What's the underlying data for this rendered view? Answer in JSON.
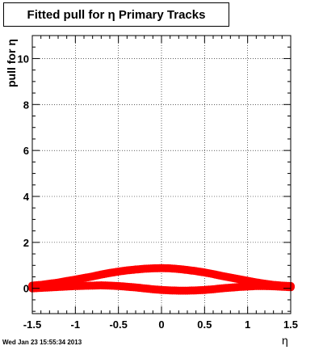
{
  "timestamp": "Wed Jan 23 15:55:34 2013",
  "chart_data": {
    "type": "scatter",
    "title": "Fitted pull for  η  Primary Tracks",
    "xlabel": "η",
    "ylabel": "pull for η",
    "xlim": [
      -1.5,
      1.5
    ],
    "ylim": [
      -1.1,
      11.0
    ],
    "xticks": [
      -1.5,
      -1,
      -0.5,
      0,
      0.5,
      1,
      1.5
    ],
    "xtick_labels": [
      "-1.5",
      "-1",
      "-0.5",
      "0",
      "0.5",
      "1",
      "1.5"
    ],
    "yticks": [
      0,
      2,
      4,
      6,
      8,
      10
    ],
    "ytick_labels": [
      "0",
      "2",
      "4",
      "6",
      "8",
      "10"
    ],
    "grid": true,
    "marker_color": "#ff0000",
    "series": [
      {
        "x": [
          -1.5,
          -1.4,
          -1.3,
          -1.2,
          -1.1,
          -1.0,
          -0.9,
          -0.8,
          -0.7,
          -0.6,
          -0.5,
          -0.4,
          -0.3,
          -0.2,
          -0.1,
          0.0,
          0.1,
          0.2,
          0.3,
          0.4,
          0.5,
          0.6,
          0.7,
          0.8,
          0.9,
          1.0,
          1.1,
          1.2,
          1.3,
          1.4,
          1.5
        ],
        "y": [
          0.12,
          0.15,
          0.2,
          0.25,
          0.32,
          0.38,
          0.45,
          0.52,
          0.6,
          0.67,
          0.73,
          0.78,
          0.82,
          0.85,
          0.87,
          0.88,
          0.87,
          0.84,
          0.8,
          0.75,
          0.69,
          0.62,
          0.54,
          0.47,
          0.4,
          0.33,
          0.26,
          0.2,
          0.15,
          0.12,
          0.1
        ]
      },
      {
        "x": [
          -1.5,
          -1.4,
          -1.3,
          -1.2,
          -1.1,
          -1.0,
          -0.9,
          -0.8,
          -0.7,
          -0.6,
          -0.5,
          -0.4,
          -0.3,
          -0.2,
          -0.1,
          0.0,
          0.1,
          0.2,
          0.3,
          0.4,
          0.5,
          0.6,
          0.7,
          0.8,
          0.9,
          1.0,
          1.1,
          1.2,
          1.3,
          1.4,
          1.5
        ],
        "y": [
          0.0,
          0.02,
          0.04,
          0.06,
          0.08,
          0.1,
          0.11,
          0.12,
          0.13,
          0.12,
          0.1,
          0.07,
          0.04,
          0.0,
          -0.04,
          -0.07,
          -0.09,
          -0.1,
          -0.1,
          -0.09,
          -0.07,
          -0.04,
          0.0,
          0.03,
          0.06,
          0.08,
          0.1,
          0.1,
          0.09,
          0.07,
          0.05
        ]
      }
    ]
  }
}
